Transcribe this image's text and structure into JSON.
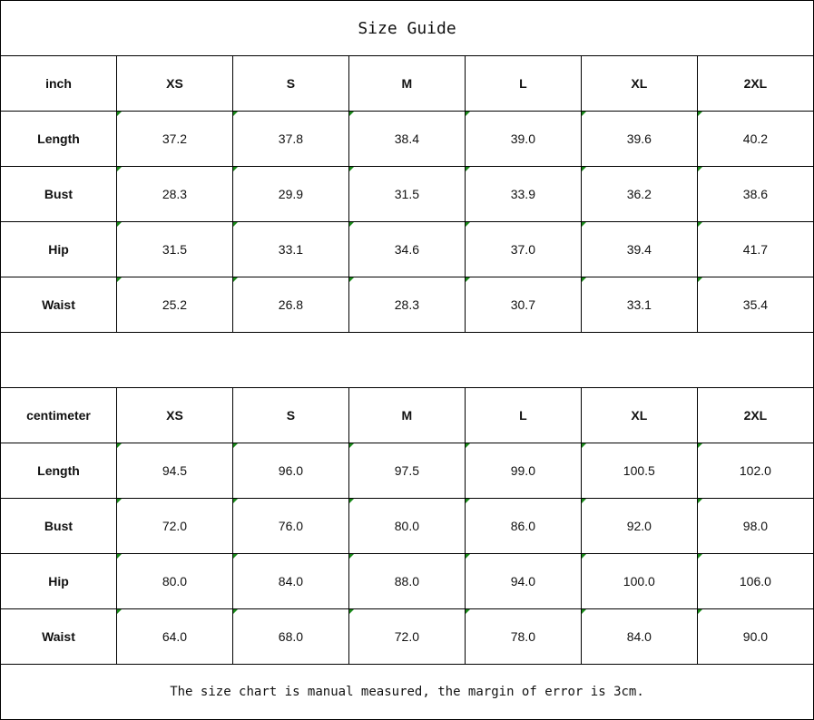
{
  "title": "Size Guide",
  "sizes": [
    "XS",
    "S",
    "M",
    "L",
    "XL",
    "2XL"
  ],
  "tables": [
    {
      "unit": "inch",
      "rows": [
        {
          "label": "Length",
          "values": [
            "37.2",
            "37.8",
            "38.4",
            "39.0",
            "39.6",
            "40.2"
          ]
        },
        {
          "label": "Bust",
          "values": [
            "28.3",
            "29.9",
            "31.5",
            "33.9",
            "36.2",
            "38.6"
          ]
        },
        {
          "label": "Hip",
          "values": [
            "31.5",
            "33.1",
            "34.6",
            "37.0",
            "39.4",
            "41.7"
          ]
        },
        {
          "label": "Waist",
          "values": [
            "25.2",
            "26.8",
            "28.3",
            "30.7",
            "33.1",
            "35.4"
          ]
        }
      ]
    },
    {
      "unit": "centimeter",
      "rows": [
        {
          "label": "Length",
          "values": [
            "94.5",
            "96.0",
            "97.5",
            "99.0",
            "100.5",
            "102.0"
          ]
        },
        {
          "label": "Bust",
          "values": [
            "72.0",
            "76.0",
            "80.0",
            "86.0",
            "92.0",
            "98.0"
          ]
        },
        {
          "label": "Hip",
          "values": [
            "80.0",
            "84.0",
            "88.0",
            "94.0",
            "100.0",
            "106.0"
          ]
        },
        {
          "label": "Waist",
          "values": [
            "64.0",
            "68.0",
            "72.0",
            "78.0",
            "84.0",
            "90.0"
          ]
        }
      ]
    }
  ],
  "note": "The size chart is manual measured, the margin of error is 3cm.",
  "colors": {
    "cell_marker": "#1a8a1a"
  }
}
